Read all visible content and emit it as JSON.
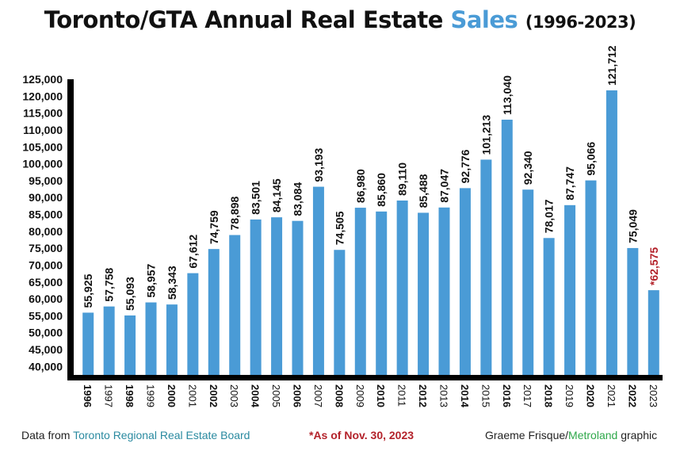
{
  "header": {
    "title_main": "Toronto/GTA Annual Real Estate",
    "title_accent": "Sales",
    "title_years": "(1996-2023)"
  },
  "colors": {
    "bar": "#4a9bd6",
    "axis": "#000000",
    "highlight": "#b3222a"
  },
  "footer": {
    "source_prefix": "Data from",
    "source_org": "Toronto Regional Real Estate Board",
    "note": "*As of Nov. 30, 2023",
    "credit_author": "Graeme Frisque/",
    "credit_pub": "Metroland",
    "credit_suffix": " graphic"
  },
  "chart_data": {
    "type": "bar",
    "title": "Toronto/GTA Annual Real Estate Sales (1996-2023)",
    "xlabel": "",
    "ylabel": "",
    "ylim": [
      37500,
      125000
    ],
    "yticks": [
      "125,000",
      "120,000",
      "115,000",
      "110,000",
      "105,000",
      "100,000",
      "95,000",
      "90,000",
      "85,000",
      "80,000",
      "75,000",
      "70,000",
      "65,000",
      "60,000",
      "55,000",
      "50,000",
      "45,000",
      "40,000"
    ],
    "ytick_values": [
      125000,
      120000,
      115000,
      110000,
      105000,
      100000,
      95000,
      90000,
      85000,
      80000,
      75000,
      70000,
      65000,
      60000,
      55000,
      50000,
      45000,
      40000
    ],
    "categories": [
      "1996",
      "1997",
      "1998",
      "1999",
      "2000",
      "2001",
      "2002",
      "2003",
      "2004",
      "2005",
      "2006",
      "2007",
      "2008",
      "2009",
      "2010",
      "2011",
      "2012",
      "2013",
      "2014",
      "2015",
      "2016",
      "2017",
      "2018",
      "2019",
      "2020",
      "2021",
      "2022",
      "2023"
    ],
    "bold_categories": [
      "1996",
      "1998",
      "2000",
      "2002",
      "2004",
      "2006",
      "2008",
      "2010",
      "2012",
      "2014",
      "2016",
      "2018",
      "2020",
      "2022"
    ],
    "values": [
      55925,
      57758,
      55093,
      58957,
      58343,
      67612,
      74759,
      78898,
      83501,
      84145,
      83084,
      93193,
      74505,
      86980,
      85860,
      89110,
      85488,
      87047,
      92776,
      101213,
      113040,
      92340,
      78017,
      87747,
      95066,
      121712,
      75049,
      62575
    ],
    "value_labels": [
      "55,925",
      "57,758",
      "55,093",
      "58,957",
      "58,343",
      "67,612",
      "74,759",
      "78,898",
      "83,501",
      "84,145",
      "83,084",
      "93,193",
      "74,505",
      "86,980",
      "85,860",
      "89,110",
      "85,488",
      "87,047",
      "92,776",
      "101,213",
      "113,040",
      "92,340",
      "78,017",
      "87,747",
      "95,066",
      "121,712",
      "75,049",
      "*62,575"
    ],
    "highlight_label_index": 27,
    "grid": false,
    "legend": "none"
  }
}
